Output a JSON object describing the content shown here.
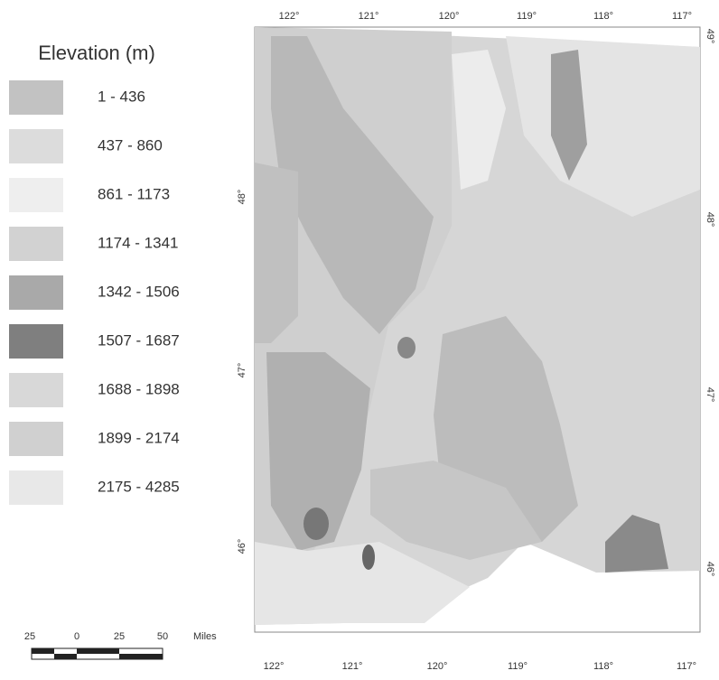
{
  "legend": {
    "title": "Elevation (m)",
    "items": [
      {
        "label": "1 - 436",
        "color": "#c2c2c2"
      },
      {
        "label": "437 - 860",
        "color": "#dcdcdc"
      },
      {
        "label": "861 - 1173",
        "color": "#eeeeee"
      },
      {
        "label": "1174 - 1341",
        "color": "#d2d2d2"
      },
      {
        "label": "1342 - 1506",
        "color": "#a9a9a9"
      },
      {
        "label": "1507 - 1687",
        "color": "#7f7f7f"
      },
      {
        "label": "1688 - 1898",
        "color": "#d8d8d8"
      },
      {
        "label": "1899 - 2174",
        "color": "#d0d0d0"
      },
      {
        "label": "2175 - 4285",
        "color": "#e8e8e8"
      }
    ]
  },
  "axes": {
    "top": [
      "122°",
      "121°",
      "120°",
      "119°",
      "118°",
      "117°"
    ],
    "bottom": [
      "122°",
      "121°",
      "120°",
      "119°",
      "118°",
      "117°"
    ],
    "left": [
      "48°",
      "47°",
      "46°"
    ],
    "right": [
      "49°",
      "48°",
      "47°",
      "46°"
    ]
  },
  "scale_bar": {
    "labels": [
      "25",
      "0",
      "25",
      "50",
      "Miles"
    ]
  }
}
